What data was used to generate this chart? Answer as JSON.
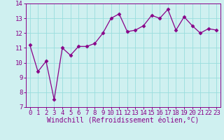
{
  "x": [
    0,
    1,
    2,
    3,
    4,
    5,
    6,
    7,
    8,
    9,
    10,
    11,
    12,
    13,
    14,
    15,
    16,
    17,
    18,
    19,
    20,
    21,
    22,
    23
  ],
  "y": [
    11.2,
    9.4,
    10.1,
    7.5,
    11.0,
    10.5,
    11.1,
    11.1,
    11.3,
    12.0,
    13.0,
    13.3,
    12.1,
    12.2,
    12.5,
    13.2,
    13.0,
    13.6,
    12.2,
    13.1,
    12.5,
    12.0,
    12.3,
    12.2
  ],
  "line_color": "#880088",
  "marker": "D",
  "marker_size": 2.5,
  "bg_color": "#cff0f0",
  "grid_color": "#99dddd",
  "xlabel": "Windchill (Refroidissement éolien,°C)",
  "xlim": [
    -0.5,
    23.5
  ],
  "ylim": [
    7,
    14
  ],
  "yticks": [
    7,
    8,
    9,
    10,
    11,
    12,
    13,
    14
  ],
  "xticks": [
    0,
    1,
    2,
    3,
    4,
    5,
    6,
    7,
    8,
    9,
    10,
    11,
    12,
    13,
    14,
    15,
    16,
    17,
    18,
    19,
    20,
    21,
    22,
    23
  ],
  "tick_label_size": 6.5,
  "xlabel_size": 7
}
